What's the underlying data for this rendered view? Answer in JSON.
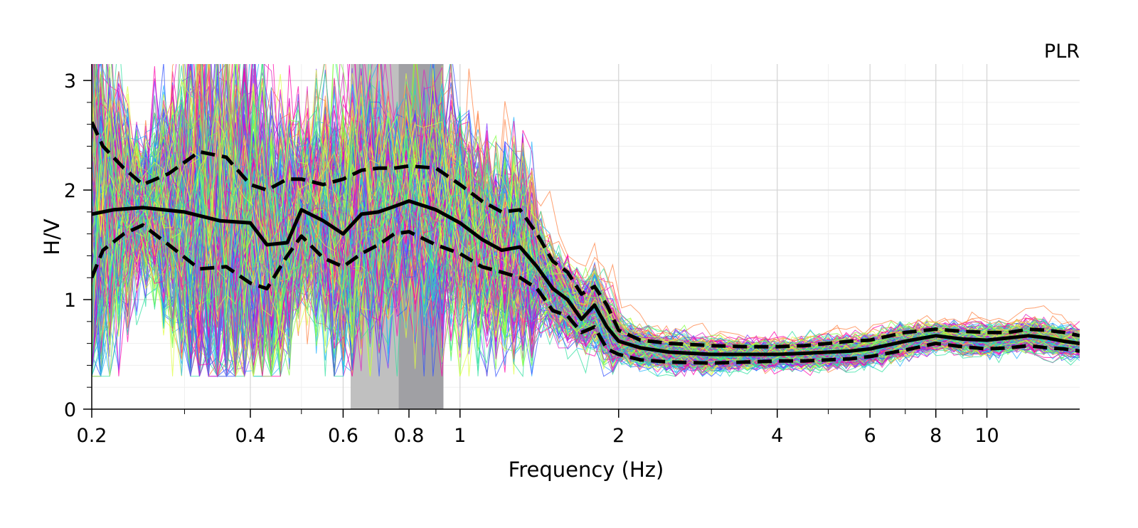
{
  "chart_data": {
    "type": "line",
    "title": "",
    "site_label": "PLR",
    "xlabel": "Frequency (Hz)",
    "ylabel": "H/V",
    "x_scale": "log",
    "xlim": [
      0.2,
      15
    ],
    "ylim": [
      0,
      3.15
    ],
    "x_ticks": [
      {
        "value": 0.2,
        "label": "0.2"
      },
      {
        "value": 0.4,
        "label": "0.4"
      },
      {
        "value": 0.6,
        "label": "0.6"
      },
      {
        "value": 0.8,
        "label": "0.8"
      },
      {
        "value": 1,
        "label": "1"
      },
      {
        "value": 2,
        "label": "2"
      },
      {
        "value": 4,
        "label": "4"
      },
      {
        "value": 6,
        "label": "6"
      },
      {
        "value": 8,
        "label": "8"
      },
      {
        "value": 10,
        "label": "10"
      }
    ],
    "y_ticks": [
      {
        "value": 0,
        "label": "0"
      },
      {
        "value": 1,
        "label": "1"
      },
      {
        "value": 2,
        "label": "2"
      },
      {
        "value": 3,
        "label": "3"
      }
    ],
    "grid": true,
    "legend": "none",
    "peak_band_outer": {
      "x_range": [
        0.62,
        0.93
      ],
      "color": "#c0c0c0"
    },
    "peak_band_inner": {
      "x_range": [
        0.765,
        0.93
      ],
      "color": "#a0a0a4"
    },
    "window_curve_colors": [
      "#ff00aa",
      "#e020c0",
      "#8030ff",
      "#3050ff",
      "#20b0ff",
      "#30e0a0",
      "#80ff40",
      "#e0ff40",
      "#ff8040"
    ],
    "window_curve_count": 300,
    "series": [
      {
        "line_style": "solid",
        "color": "#000000",
        "x": [
          0.2,
          0.22,
          0.25,
          0.3,
          0.35,
          0.4,
          0.43,
          0.47,
          0.5,
          0.55,
          0.6,
          0.65,
          0.7,
          0.75,
          0.8,
          0.9,
          1.0,
          1.1,
          1.2,
          1.3,
          1.4,
          1.5,
          1.6,
          1.7,
          1.8,
          1.9,
          2.0,
          2.2,
          2.5,
          3.0,
          3.5,
          4.0,
          4.5,
          5.0,
          5.5,
          6.0,
          7.0,
          8.0,
          9.0,
          10.0,
          11.0,
          12.0,
          13.0,
          14.0,
          15.0
        ],
        "y": [
          1.78,
          1.82,
          1.84,
          1.8,
          1.72,
          1.7,
          1.5,
          1.52,
          1.82,
          1.72,
          1.6,
          1.78,
          1.8,
          1.85,
          1.9,
          1.82,
          1.7,
          1.55,
          1.45,
          1.48,
          1.3,
          1.1,
          1.0,
          0.82,
          0.95,
          0.75,
          0.62,
          0.56,
          0.52,
          0.5,
          0.5,
          0.5,
          0.51,
          0.52,
          0.53,
          0.55,
          0.62,
          0.67,
          0.64,
          0.63,
          0.65,
          0.67,
          0.65,
          0.62,
          0.6
        ]
      },
      {
        "line_style": "dashed",
        "color": "#000000",
        "x": [
          0.2,
          0.21,
          0.23,
          0.25,
          0.28,
          0.32,
          0.36,
          0.4,
          0.43,
          0.47,
          0.5,
          0.55,
          0.6,
          0.65,
          0.7,
          0.75,
          0.8,
          0.9,
          1.0,
          1.1,
          1.2,
          1.3,
          1.4,
          1.5,
          1.6,
          1.7,
          1.8,
          1.9,
          2.0,
          2.2,
          2.5,
          3.0,
          3.5,
          4.0,
          4.5,
          5.0,
          5.5,
          6.0,
          7.0,
          8.0,
          9.0,
          10.0,
          11.0,
          12.0,
          13.0,
          14.0,
          15.0
        ],
        "y": [
          2.62,
          2.4,
          2.2,
          2.05,
          2.15,
          2.35,
          2.3,
          2.05,
          2.0,
          2.1,
          2.1,
          2.05,
          2.1,
          2.18,
          2.2,
          2.2,
          2.22,
          2.2,
          2.05,
          1.9,
          1.8,
          1.82,
          1.6,
          1.35,
          1.25,
          1.05,
          1.12,
          0.95,
          0.72,
          0.63,
          0.6,
          0.58,
          0.57,
          0.57,
          0.58,
          0.6,
          0.62,
          0.63,
          0.7,
          0.73,
          0.71,
          0.7,
          0.7,
          0.73,
          0.72,
          0.7,
          0.67
        ]
      },
      {
        "line_style": "dashed",
        "color": "#000000",
        "x": [
          0.2,
          0.21,
          0.23,
          0.25,
          0.28,
          0.32,
          0.36,
          0.4,
          0.43,
          0.47,
          0.5,
          0.55,
          0.6,
          0.65,
          0.7,
          0.75,
          0.8,
          0.9,
          1.0,
          1.1,
          1.2,
          1.3,
          1.4,
          1.5,
          1.6,
          1.7,
          1.8,
          1.9,
          2.0,
          2.2,
          2.5,
          3.0,
          3.5,
          4.0,
          4.5,
          5.0,
          5.5,
          6.0,
          7.0,
          8.0,
          9.0,
          10.0,
          11.0,
          12.0,
          13.0,
          14.0,
          15.0
        ],
        "y": [
          1.2,
          1.45,
          1.6,
          1.68,
          1.5,
          1.28,
          1.3,
          1.15,
          1.1,
          1.4,
          1.58,
          1.38,
          1.3,
          1.42,
          1.5,
          1.6,
          1.62,
          1.5,
          1.42,
          1.3,
          1.25,
          1.2,
          1.1,
          0.9,
          0.85,
          0.7,
          0.75,
          0.55,
          0.5,
          0.45,
          0.43,
          0.42,
          0.43,
          0.44,
          0.44,
          0.45,
          0.46,
          0.48,
          0.54,
          0.6,
          0.57,
          0.55,
          0.56,
          0.58,
          0.56,
          0.55,
          0.53
        ]
      }
    ]
  }
}
